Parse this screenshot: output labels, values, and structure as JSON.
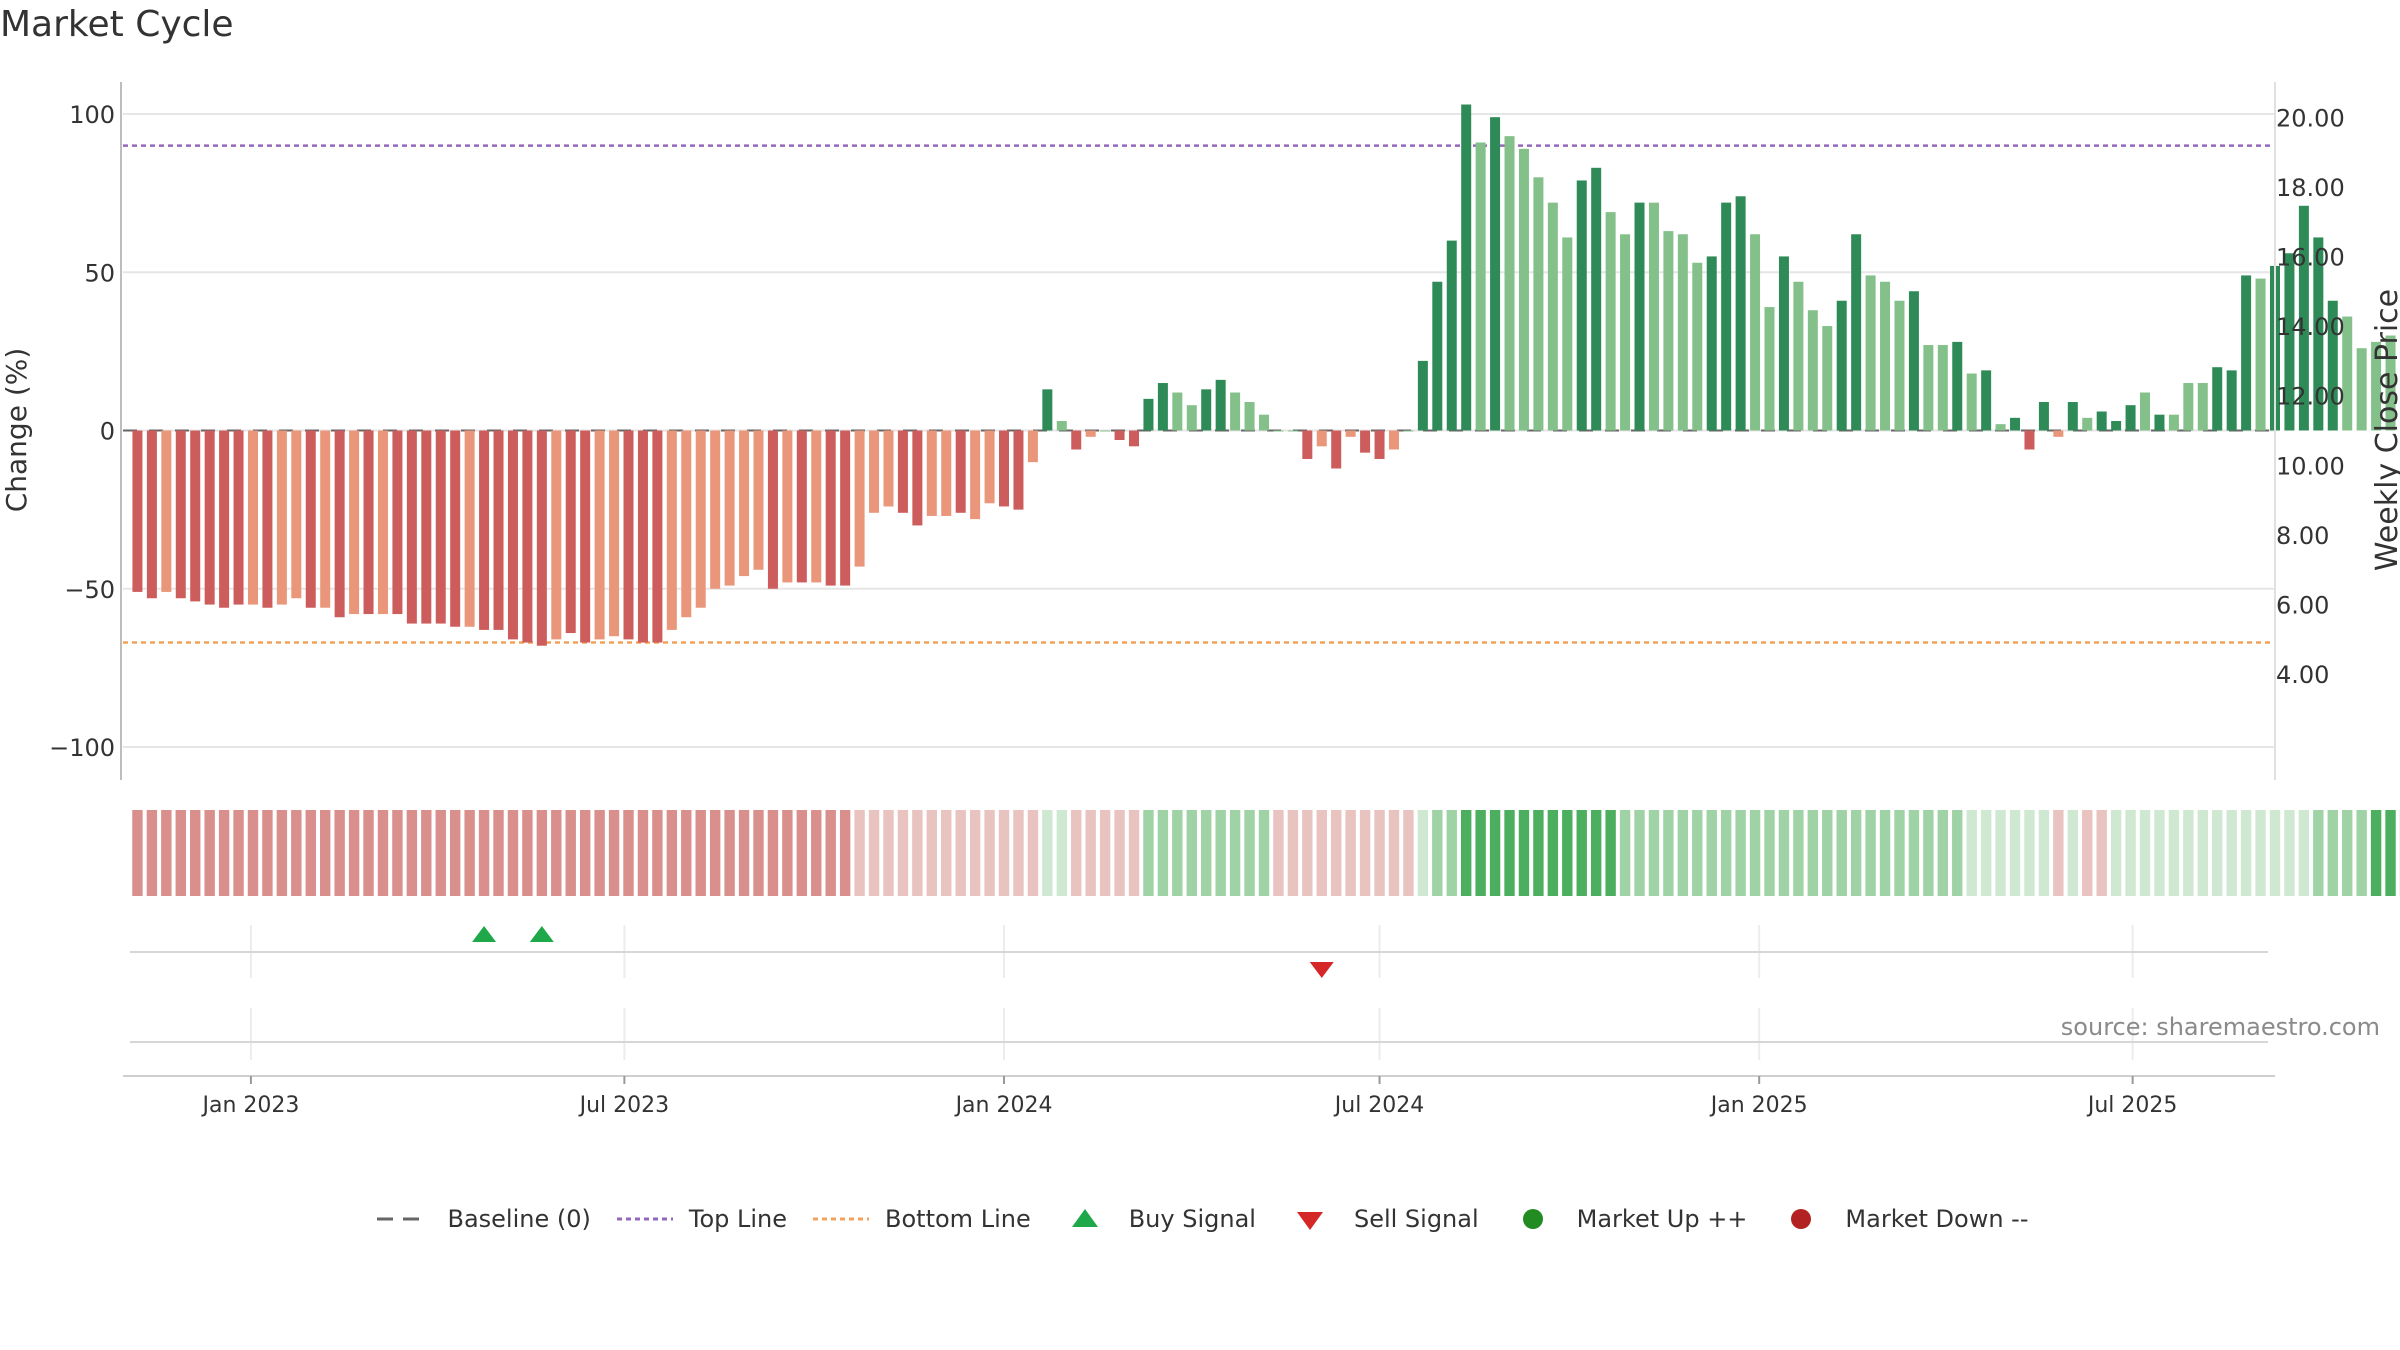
{
  "title": "Market Cycle",
  "source": "source: sharemaestro.com",
  "colors": {
    "strong_up": "#2e8b57",
    "weak_up": "#84c08a",
    "strong_down": "#cd5c5c",
    "weak_down": "#e9967a",
    "top_line": "#9467bd",
    "bottom_line": "#f4a259",
    "buy": "#1ea84a",
    "sell": "#d62728",
    "market_up": "#228b22",
    "market_down": "#b22222",
    "baseline": "#666666"
  },
  "chart_data": {
    "type": "bar",
    "title": "Market Cycle",
    "ylabel": "Change (%)",
    "y2label": "Weekly Close Price",
    "ylim": [
      -110,
      112
    ],
    "y2lim": [
      2.4,
      20.5
    ],
    "yticks": [
      100,
      50,
      0,
      -50,
      -100
    ],
    "ytick_labels": [
      "100",
      "50",
      "0",
      "−50",
      "−100"
    ],
    "y2ticks": [
      20,
      18,
      16,
      14,
      12,
      10,
      8,
      6,
      4
    ],
    "y2tick_labels": [
      "20.00",
      "18.00",
      "16.00",
      "14.00",
      "12.00",
      "10.00",
      "8.00",
      "6.00",
      "4.00"
    ],
    "xlim": [
      "2022-10-31",
      "2025-09-08"
    ],
    "xticks": [
      "2023-01-01",
      "2023-07-01",
      "2024-01-01",
      "2024-07-01",
      "2025-01-01",
      "2025-07-01"
    ],
    "xtick_labels": [
      "Jan 2023",
      "Jul 2023",
      "Jan 2024",
      "Jul 2024",
      "Jan 2025",
      "Jul 2025"
    ],
    "first_week": "2022-11-07",
    "top_line": 90,
    "bottom_line": -67,
    "values": [
      -51,
      -53,
      -51,
      -53,
      -54,
      -55,
      -56,
      -55,
      -55,
      -56,
      -55,
      -53,
      -56,
      -56,
      -59,
      -58,
      -58,
      -58,
      -58,
      -61,
      -61,
      -61,
      -62,
      -62,
      -63,
      -63,
      -66,
      -67,
      -68,
      -66,
      -64,
      -67,
      -66,
      -65,
      -66,
      -67,
      -67,
      -63,
      -59,
      -56,
      -50,
      -49,
      -46,
      -44,
      -50,
      -48,
      -48,
      -48,
      -49,
      -49,
      -43,
      -26,
      -24,
      -26,
      -30,
      -27,
      -27,
      -26,
      -28,
      -23,
      -24,
      -25,
      -10,
      13,
      3,
      -6,
      -2,
      0,
      -3,
      -5,
      10,
      15,
      12,
      8,
      13,
      16,
      12,
      9,
      5,
      0,
      0,
      -9,
      -5,
      -12,
      -2,
      -7,
      -9,
      -6,
      0,
      22,
      47,
      60,
      103,
      91,
      99,
      93,
      89,
      80,
      72,
      61,
      79,
      83,
      69,
      62,
      72,
      72,
      63,
      62,
      53,
      55,
      72,
      74,
      62,
      39,
      55,
      47,
      38,
      33,
      41,
      62,
      49,
      47,
      41,
      44,
      27,
      27,
      28,
      18,
      19,
      2,
      4,
      -6,
      9,
      -2,
      9,
      4,
      6,
      3,
      8,
      12,
      5,
      5,
      15,
      15,
      20,
      19,
      49,
      48,
      52,
      56,
      71,
      61,
      41,
      36,
      26,
      28,
      30,
      30,
      30,
      32,
      29
    ],
    "strength": [
      "s",
      "s",
      "w",
      "s",
      "s",
      "s",
      "s",
      "s",
      "w",
      "s",
      "w",
      "w",
      "s",
      "w",
      "s",
      "w",
      "s",
      "w",
      "s",
      "s",
      "s",
      "s",
      "s",
      "w",
      "s",
      "s",
      "s",
      "s",
      "s",
      "w",
      "s",
      "s",
      "w",
      "w",
      "s",
      "s",
      "s",
      "w",
      "w",
      "w",
      "w",
      "w",
      "w",
      "w",
      "s",
      "w",
      "s",
      "w",
      "s",
      "s",
      "w",
      "w",
      "w",
      "s",
      "s",
      "w",
      "w",
      "s",
      "w",
      "w",
      "s",
      "s",
      "w",
      "s",
      "w",
      "s",
      "w",
      "w",
      "s",
      "s",
      "s",
      "s",
      "w",
      "w",
      "s",
      "s",
      "w",
      "w",
      "w",
      "w",
      "w",
      "s",
      "w",
      "s",
      "w",
      "s",
      "s",
      "w",
      "w",
      "s",
      "s",
      "s",
      "s",
      "w",
      "s",
      "w",
      "w",
      "w",
      "w",
      "w",
      "s",
      "s",
      "w",
      "w",
      "s",
      "w",
      "w",
      "w",
      "w",
      "s",
      "s",
      "s",
      "w",
      "w",
      "s",
      "w",
      "w",
      "w",
      "s",
      "s",
      "w",
      "w",
      "w",
      "s",
      "w",
      "w",
      "s",
      "w",
      "s",
      "w",
      "s",
      "s",
      "s",
      "w",
      "s",
      "w",
      "s",
      "s",
      "s",
      "w",
      "s",
      "w",
      "w",
      "w",
      "s",
      "s",
      "s",
      "w",
      "s",
      "s",
      "s",
      "s",
      "s",
      "w",
      "w",
      "w",
      "w",
      "s",
      "s",
      "s",
      "w",
      "s",
      "w"
    ],
    "band_levels": [
      -2,
      -2,
      -2,
      -2,
      -2,
      -2,
      -2,
      -2,
      -2,
      -2,
      -2,
      -2,
      -2,
      -2,
      -2,
      -2,
      -2,
      -2,
      -2,
      -2,
      -2,
      -2,
      -2,
      -2,
      -2,
      -2,
      -2,
      -2,
      -2,
      -2,
      -2,
      -2,
      -2,
      -2,
      -2,
      -2,
      -2,
      -2,
      -2,
      -2,
      -2,
      -2,
      -2,
      -2,
      -2,
      -2,
      -2,
      -2,
      -2,
      -2,
      -1,
      -1,
      -1,
      -1,
      -1,
      -1,
      -1,
      -1,
      -1,
      -1,
      -1,
      -1,
      -1,
      1,
      1,
      -1,
      -1,
      -1,
      -1,
      -1,
      2,
      2,
      2,
      2,
      2,
      2,
      2,
      2,
      2,
      -1,
      -1,
      -1,
      -1,
      -1,
      -1,
      -1,
      -1,
      -1,
      -1,
      1,
      2,
      2,
      3,
      3,
      3,
      3,
      3,
      3,
      3,
      3,
      3,
      3,
      3,
      2,
      2,
      2,
      2,
      2,
      2,
      2,
      2,
      2,
      2,
      2,
      2,
      2,
      2,
      2,
      2,
      2,
      2,
      2,
      2,
      2,
      2,
      2,
      2,
      1,
      1,
      1,
      1,
      1,
      1,
      -1,
      1,
      -1,
      -1,
      1,
      1,
      1,
      1,
      1,
      1,
      1,
      1,
      1,
      1,
      1,
      1,
      1,
      1,
      2,
      2,
      2,
      2,
      3,
      3,
      2,
      2,
      2,
      2,
      2,
      2,
      2,
      2,
      2
    ],
    "buy_signals": [
      "2023-04-24",
      "2023-05-22"
    ],
    "sell_signals": [
      "2024-06-03"
    ],
    "legend": [
      "Baseline (0)",
      "Top Line",
      "Bottom Line",
      "Buy Signal",
      "Sell Signal",
      "Market Up ++",
      "Market Down --"
    ],
    "grid": true,
    "legend_position": "bottom"
  }
}
